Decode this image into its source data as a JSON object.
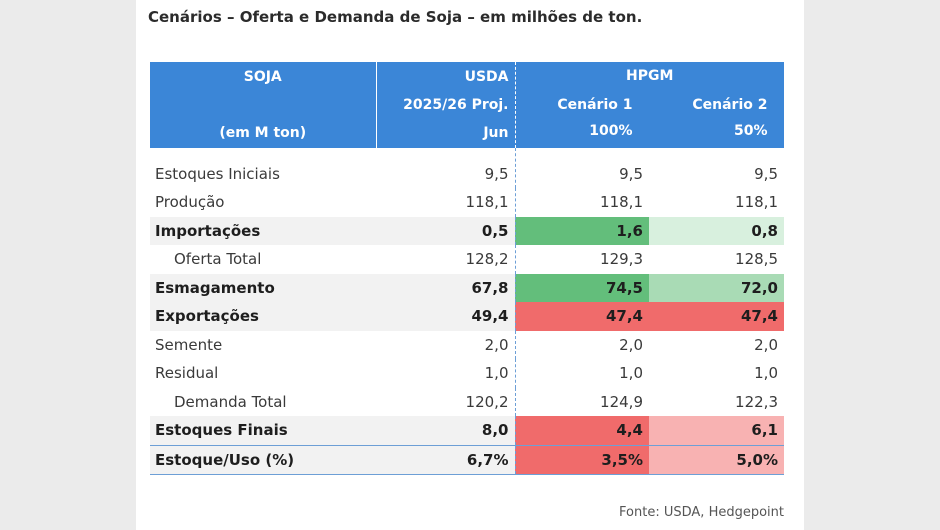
{
  "title": "Cenários – Oferta e Demanda de Soja – em milhões de ton.",
  "header": {
    "soja": "SOJA",
    "unit": "(em M ton)",
    "usda": "USDA",
    "usda_proj": "2025/26 Proj.",
    "usda_month": "Jun",
    "hpgm": "HPGM",
    "cen1": "Cenário 1",
    "cen1_pct": "100%",
    "cen2": "Cenário 2",
    "cen2_pct": "50%"
  },
  "rows": [
    {
      "label": "Estoques Iniciais",
      "usda": "9,5",
      "c1": "9,5",
      "c2": "9,5"
    },
    {
      "label": "Produção",
      "usda": "118,1",
      "c1": "118,1",
      "c2": "118,1"
    },
    {
      "label": "Importações",
      "usda": "0,5",
      "c1": "1,6",
      "c2": "0,8"
    },
    {
      "label": "Oferta Total",
      "usda": "128,2",
      "c1": "129,3",
      "c2": "128,5"
    },
    {
      "label": "Esmagamento",
      "usda": "67,8",
      "c1": "74,5",
      "c2": "72,0"
    },
    {
      "label": "Exportações",
      "usda": "49,4",
      "c1": "47,4",
      "c2": "47,4"
    },
    {
      "label": "Semente",
      "usda": "2,0",
      "c1": "2,0",
      "c2": "2,0"
    },
    {
      "label": "Residual",
      "usda": "1,0",
      "c1": "1,0",
      "c2": "1,0"
    },
    {
      "label": "Demanda Total",
      "usda": "120,2",
      "c1": "124,9",
      "c2": "122,3"
    },
    {
      "label": "Estoques Finais",
      "usda": "8,0",
      "c1": "4,4",
      "c2": "6,1"
    },
    {
      "label": "Estoque/Uso (%)",
      "usda": "6,7%",
      "c1": "3,5%",
      "c2": "5,0%"
    }
  ],
  "colors": {
    "header_bg": "#3b86d7",
    "green_strong": "#63be7b",
    "green_light": "#d8f0de",
    "green_mid": "#a9dbb5",
    "red_strong": "#f06b6b",
    "red_light": "#f8b2b2"
  },
  "source": "Fonte: USDA, Hedgepoint"
}
